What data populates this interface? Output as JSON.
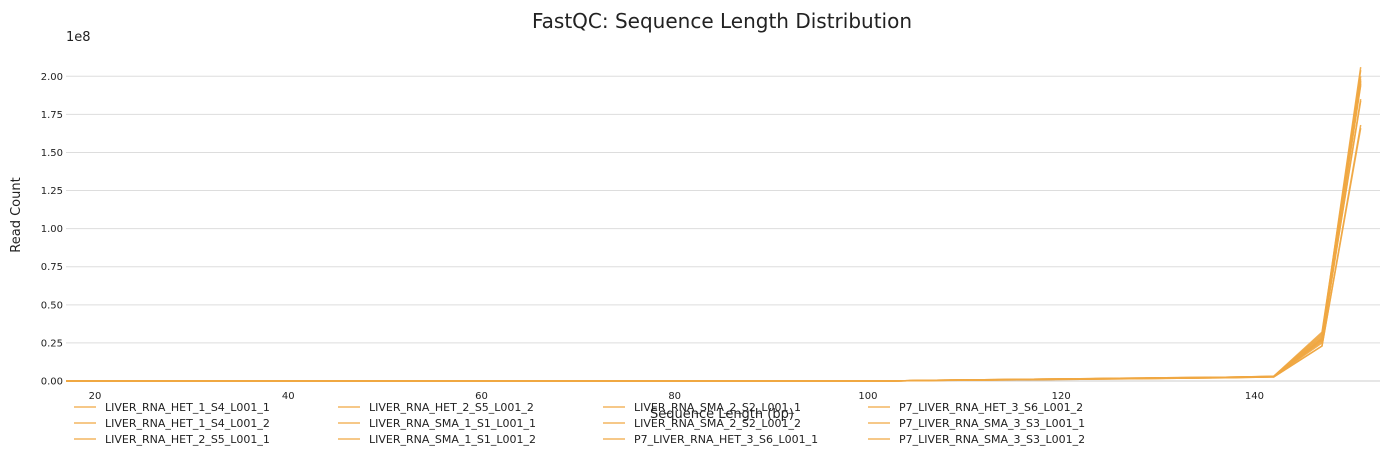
{
  "chart_data": {
    "type": "line",
    "title": "FastQC: Sequence Length Distribution",
    "xlabel": "Sequence Length (bp)",
    "ylabel": "Read Count",
    "y_offset_label": "1e8",
    "xlim": [
      17,
      153
    ],
    "ylim": [
      0,
      2.12
    ],
    "x_ticks": [
      20,
      40,
      60,
      80,
      100,
      120,
      140
    ],
    "y_ticks": [
      0.0,
      0.25,
      0.5,
      0.75,
      1.0,
      1.25,
      1.5,
      1.75,
      2.0
    ],
    "x_tick_labels": [
      "20",
      "40",
      "60",
      "80",
      "100",
      "120",
      "140"
    ],
    "y_tick_labels": [
      "0.00",
      "0.25",
      "0.50",
      "0.75",
      "1.00",
      "1.25",
      "1.50",
      "1.75",
      "2.00"
    ],
    "grid": "horizontal",
    "legend_position": "bottom",
    "line_color": "#f0a742",
    "x": [
      17,
      102,
      107,
      112,
      117,
      122,
      127,
      132,
      137,
      142,
      147,
      151
    ],
    "series": [
      {
        "name": "LIVER_RNA_HET_1_S4_L001_1",
        "values": [
          0,
          0,
          0.004,
          0.007,
          0.01,
          0.013,
          0.016,
          0.019,
          0.022,
          0.028,
          0.26,
          1.97
        ]
      },
      {
        "name": "LIVER_RNA_HET_1_S4_L001_2",
        "values": [
          0,
          0,
          0.004,
          0.007,
          0.01,
          0.013,
          0.016,
          0.019,
          0.022,
          0.028,
          0.25,
          1.95
        ]
      },
      {
        "name": "LIVER_RNA_HET_2_S5_L001_1",
        "values": [
          0,
          0,
          0.005,
          0.008,
          0.011,
          0.014,
          0.018,
          0.021,
          0.024,
          0.03,
          0.3,
          2.06
        ]
      },
      {
        "name": "LIVER_RNA_HET_2_S5_L001_2",
        "values": [
          0,
          0,
          0.005,
          0.008,
          0.011,
          0.014,
          0.018,
          0.021,
          0.024,
          0.03,
          0.29,
          2.04
        ]
      },
      {
        "name": "LIVER_RNA_SMA_1_S1_L001_1",
        "values": [
          0,
          0,
          0.004,
          0.006,
          0.009,
          0.012,
          0.015,
          0.018,
          0.021,
          0.026,
          0.23,
          1.68
        ]
      },
      {
        "name": "LIVER_RNA_SMA_1_S1_L001_2",
        "values": [
          0,
          0,
          0.004,
          0.006,
          0.009,
          0.012,
          0.015,
          0.018,
          0.021,
          0.026,
          0.23,
          1.66
        ]
      },
      {
        "name": "LIVER_RNA_SMA_2_S2_L001_1",
        "values": [
          0,
          0,
          0.005,
          0.007,
          0.01,
          0.013,
          0.017,
          0.02,
          0.023,
          0.029,
          0.27,
          1.85
        ]
      },
      {
        "name": "LIVER_RNA_SMA_2_S2_L001_2",
        "values": [
          0,
          0,
          0.005,
          0.007,
          0.01,
          0.013,
          0.017,
          0.02,
          0.023,
          0.029,
          0.27,
          1.84
        ]
      },
      {
        "name": "P7_LIVER_RNA_HET_3_S6_L001_1",
        "values": [
          0,
          0,
          0.005,
          0.008,
          0.012,
          0.015,
          0.019,
          0.022,
          0.025,
          0.031,
          0.32,
          2.0
        ]
      },
      {
        "name": "P7_LIVER_RNA_HET_3_S6_L001_2",
        "values": [
          0,
          0,
          0.005,
          0.008,
          0.012,
          0.015,
          0.019,
          0.022,
          0.025,
          0.031,
          0.31,
          1.98
        ]
      },
      {
        "name": "P7_LIVER_RNA_SMA_3_S3_L001_1",
        "values": [
          0,
          0,
          0.004,
          0.007,
          0.011,
          0.014,
          0.017,
          0.02,
          0.023,
          0.028,
          0.28,
          1.96
        ]
      },
      {
        "name": "P7_LIVER_RNA_SMA_3_S3_L001_2",
        "values": [
          0,
          0,
          0.004,
          0.007,
          0.011,
          0.014,
          0.017,
          0.02,
          0.023,
          0.028,
          0.28,
          1.94
        ]
      }
    ]
  }
}
